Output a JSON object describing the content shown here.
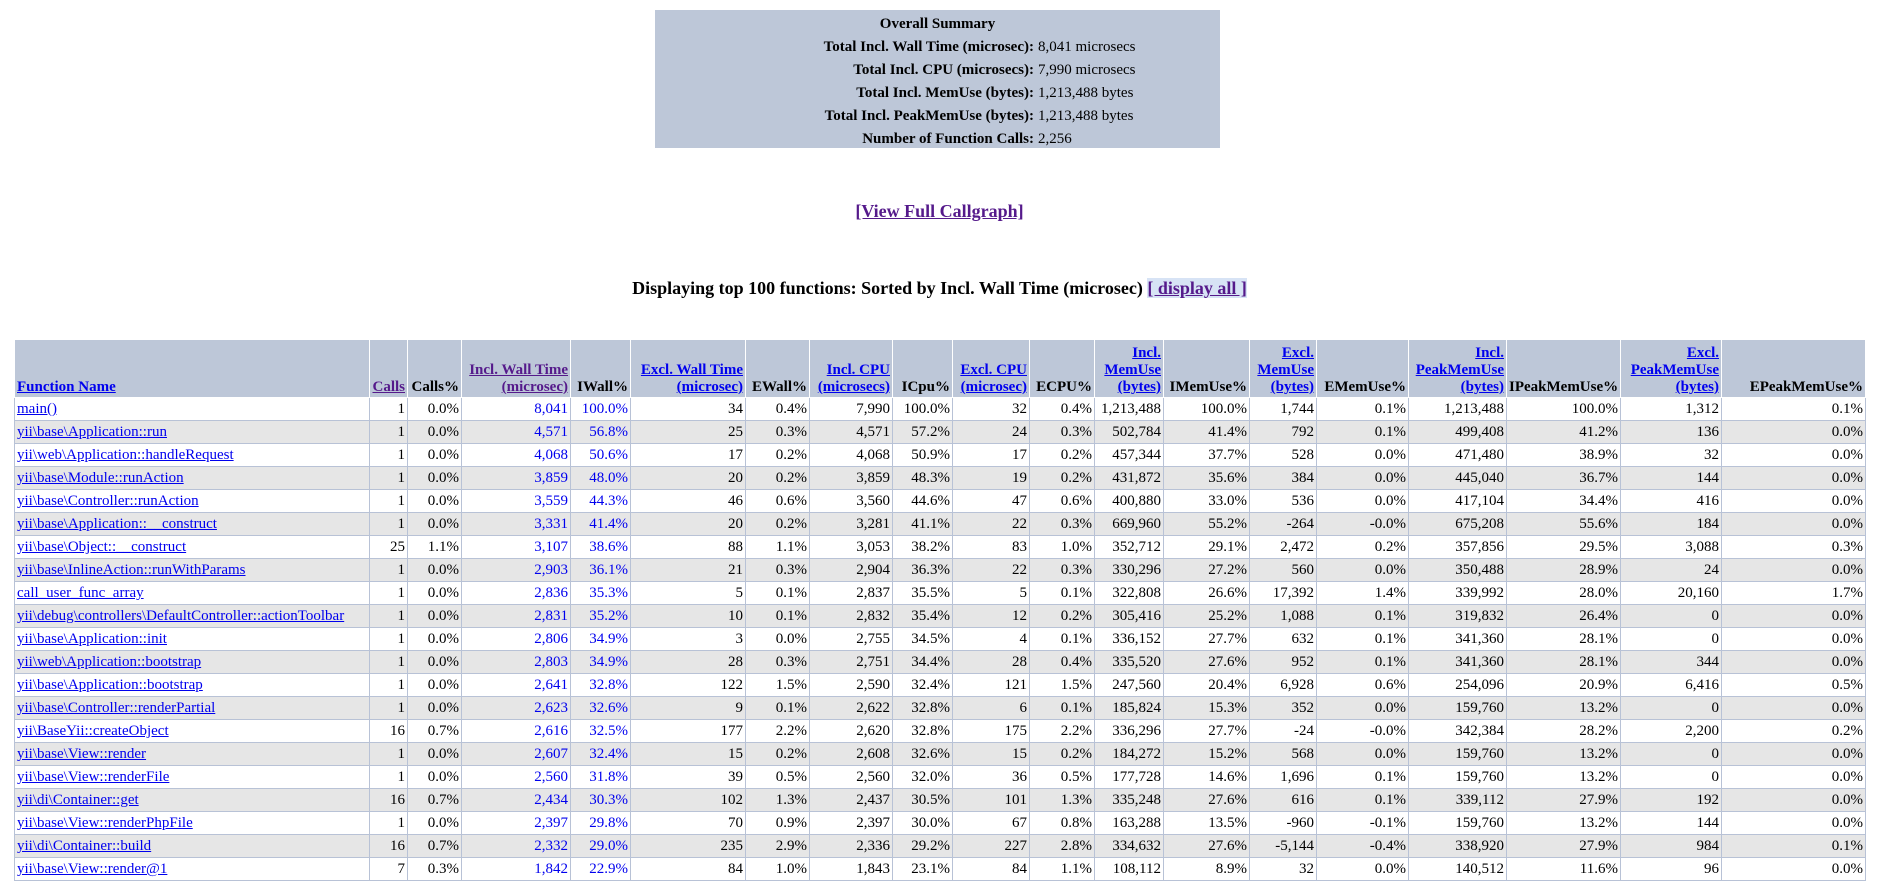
{
  "summary": {
    "title": "Overall Summary",
    "rows": [
      {
        "label": "Total Incl. Wall Time (microsec):",
        "value": "8,041 microsecs"
      },
      {
        "label": "Total Incl. CPU (microsecs):",
        "value": "7,990 microsecs"
      },
      {
        "label": "Total Incl. MemUse (bytes):",
        "value": "1,213,488 bytes"
      },
      {
        "label": "Total Incl. PeakMemUse (bytes):",
        "value": "1,213,488 bytes"
      },
      {
        "label": "Number of Function Calls:",
        "value": "2,256"
      }
    ]
  },
  "callgraph_link": "[View Full Callgraph]",
  "heading": {
    "text": "Displaying top 100 functions: Sorted by Incl. Wall Time (microsec) ",
    "display_all": "[ display all ]"
  },
  "table": {
    "headers": [
      {
        "label": "Function Name",
        "link": true,
        "visited": false,
        "align": "left"
      },
      {
        "label": "Calls",
        "link": true,
        "visited": true
      },
      {
        "label": "Calls%",
        "link": false
      },
      {
        "label": "Incl. Wall Time (microsec)",
        "link": true,
        "visited": true
      },
      {
        "label": "IWall%",
        "link": false
      },
      {
        "label": "Excl. Wall Time (microsec)",
        "link": true,
        "visited": false
      },
      {
        "label": "EWall%",
        "link": false
      },
      {
        "label": "Incl. CPU (microsecs)",
        "link": true,
        "visited": false
      },
      {
        "label": "ICpu%",
        "link": false
      },
      {
        "label": "Excl. CPU (microsec)",
        "link": true,
        "visited": false
      },
      {
        "label": "ECPU%",
        "link": false
      },
      {
        "label": "Incl. MemUse (bytes)",
        "link": true,
        "visited": false
      },
      {
        "label": "IMemUse%",
        "link": false
      },
      {
        "label": "Excl. MemUse (bytes)",
        "link": true,
        "visited": false
      },
      {
        "label": "EMemUse%",
        "link": false
      },
      {
        "label": "Incl. PeakMemUse (bytes)",
        "link": true,
        "visited": false
      },
      {
        "label": "IPeakMemUse%",
        "link": false
      },
      {
        "label": "Excl. PeakMemUse (bytes)",
        "link": true,
        "visited": false
      },
      {
        "label": "EPeakMemUse%",
        "link": false
      }
    ],
    "rows": [
      [
        "main()",
        "1",
        "0.0%",
        "8,041",
        "100.0%",
        "34",
        "0.4%",
        "7,990",
        "100.0%",
        "32",
        "0.4%",
        "1,213,488",
        "100.0%",
        "1,744",
        "0.1%",
        "1,213,488",
        "100.0%",
        "1,312",
        "0.1%"
      ],
      [
        "yii\\base\\Application::run",
        "1",
        "0.0%",
        "4,571",
        "56.8%",
        "25",
        "0.3%",
        "4,571",
        "57.2%",
        "24",
        "0.3%",
        "502,784",
        "41.4%",
        "792",
        "0.1%",
        "499,408",
        "41.2%",
        "136",
        "0.0%"
      ],
      [
        "yii\\web\\Application::handleRequest",
        "1",
        "0.0%",
        "4,068",
        "50.6%",
        "17",
        "0.2%",
        "4,068",
        "50.9%",
        "17",
        "0.2%",
        "457,344",
        "37.7%",
        "528",
        "0.0%",
        "471,480",
        "38.9%",
        "32",
        "0.0%"
      ],
      [
        "yii\\base\\Module::runAction",
        "1",
        "0.0%",
        "3,859",
        "48.0%",
        "20",
        "0.2%",
        "3,859",
        "48.3%",
        "19",
        "0.2%",
        "431,872",
        "35.6%",
        "384",
        "0.0%",
        "445,040",
        "36.7%",
        "144",
        "0.0%"
      ],
      [
        "yii\\base\\Controller::runAction",
        "1",
        "0.0%",
        "3,559",
        "44.3%",
        "46",
        "0.6%",
        "3,560",
        "44.6%",
        "47",
        "0.6%",
        "400,880",
        "33.0%",
        "536",
        "0.0%",
        "417,104",
        "34.4%",
        "416",
        "0.0%"
      ],
      [
        "yii\\base\\Application::__construct",
        "1",
        "0.0%",
        "3,331",
        "41.4%",
        "20",
        "0.2%",
        "3,281",
        "41.1%",
        "22",
        "0.3%",
        "669,960",
        "55.2%",
        "-264",
        "-0.0%",
        "675,208",
        "55.6%",
        "184",
        "0.0%"
      ],
      [
        "yii\\base\\Object::__construct",
        "25",
        "1.1%",
        "3,107",
        "38.6%",
        "88",
        "1.1%",
        "3,053",
        "38.2%",
        "83",
        "1.0%",
        "352,712",
        "29.1%",
        "2,472",
        "0.2%",
        "357,856",
        "29.5%",
        "3,088",
        "0.3%"
      ],
      [
        "yii\\base\\InlineAction::runWithParams",
        "1",
        "0.0%",
        "2,903",
        "36.1%",
        "21",
        "0.3%",
        "2,904",
        "36.3%",
        "22",
        "0.3%",
        "330,296",
        "27.2%",
        "560",
        "0.0%",
        "350,488",
        "28.9%",
        "24",
        "0.0%"
      ],
      [
        "call_user_func_array",
        "1",
        "0.0%",
        "2,836",
        "35.3%",
        "5",
        "0.1%",
        "2,837",
        "35.5%",
        "5",
        "0.1%",
        "322,808",
        "26.6%",
        "17,392",
        "1.4%",
        "339,992",
        "28.0%",
        "20,160",
        "1.7%"
      ],
      [
        "yii\\debug\\controllers\\DefaultController::actionToolbar",
        "1",
        "0.0%",
        "2,831",
        "35.2%",
        "10",
        "0.1%",
        "2,832",
        "35.4%",
        "12",
        "0.2%",
        "305,416",
        "25.2%",
        "1,088",
        "0.1%",
        "319,832",
        "26.4%",
        "0",
        "0.0%"
      ],
      [
        "yii\\base\\Application::init",
        "1",
        "0.0%",
        "2,806",
        "34.9%",
        "3",
        "0.0%",
        "2,755",
        "34.5%",
        "4",
        "0.1%",
        "336,152",
        "27.7%",
        "632",
        "0.1%",
        "341,360",
        "28.1%",
        "0",
        "0.0%"
      ],
      [
        "yii\\web\\Application::bootstrap",
        "1",
        "0.0%",
        "2,803",
        "34.9%",
        "28",
        "0.3%",
        "2,751",
        "34.4%",
        "28",
        "0.4%",
        "335,520",
        "27.6%",
        "952",
        "0.1%",
        "341,360",
        "28.1%",
        "344",
        "0.0%"
      ],
      [
        "yii\\base\\Application::bootstrap",
        "1",
        "0.0%",
        "2,641",
        "32.8%",
        "122",
        "1.5%",
        "2,590",
        "32.4%",
        "121",
        "1.5%",
        "247,560",
        "20.4%",
        "6,928",
        "0.6%",
        "254,096",
        "20.9%",
        "6,416",
        "0.5%"
      ],
      [
        "yii\\base\\Controller::renderPartial",
        "1",
        "0.0%",
        "2,623",
        "32.6%",
        "9",
        "0.1%",
        "2,622",
        "32.8%",
        "6",
        "0.1%",
        "185,824",
        "15.3%",
        "352",
        "0.0%",
        "159,760",
        "13.2%",
        "0",
        "0.0%"
      ],
      [
        "yii\\BaseYii::createObject",
        "16",
        "0.7%",
        "2,616",
        "32.5%",
        "177",
        "2.2%",
        "2,620",
        "32.8%",
        "175",
        "2.2%",
        "336,296",
        "27.7%",
        "-24",
        "-0.0%",
        "342,384",
        "28.2%",
        "2,200",
        "0.2%"
      ],
      [
        "yii\\base\\View::render",
        "1",
        "0.0%",
        "2,607",
        "32.4%",
        "15",
        "0.2%",
        "2,608",
        "32.6%",
        "15",
        "0.2%",
        "184,272",
        "15.2%",
        "568",
        "0.0%",
        "159,760",
        "13.2%",
        "0",
        "0.0%"
      ],
      [
        "yii\\base\\View::renderFile",
        "1",
        "0.0%",
        "2,560",
        "31.8%",
        "39",
        "0.5%",
        "2,560",
        "32.0%",
        "36",
        "0.5%",
        "177,728",
        "14.6%",
        "1,696",
        "0.1%",
        "159,760",
        "13.2%",
        "0",
        "0.0%"
      ],
      [
        "yii\\di\\Container::get",
        "16",
        "0.7%",
        "2,434",
        "30.3%",
        "102",
        "1.3%",
        "2,437",
        "30.5%",
        "101",
        "1.3%",
        "335,248",
        "27.6%",
        "616",
        "0.1%",
        "339,112",
        "27.9%",
        "192",
        "0.0%"
      ],
      [
        "yii\\base\\View::renderPhpFile",
        "1",
        "0.0%",
        "2,397",
        "29.8%",
        "70",
        "0.9%",
        "2,397",
        "30.0%",
        "67",
        "0.8%",
        "163,288",
        "13.5%",
        "-960",
        "-0.1%",
        "159,760",
        "13.2%",
        "144",
        "0.0%"
      ],
      [
        "yii\\di\\Container::build",
        "16",
        "0.7%",
        "2,332",
        "29.0%",
        "235",
        "2.9%",
        "2,336",
        "29.2%",
        "227",
        "2.8%",
        "334,632",
        "27.6%",
        "-5,144",
        "-0.4%",
        "338,920",
        "27.9%",
        "984",
        "0.1%"
      ],
      [
        "yii\\base\\View::render@1",
        "7",
        "0.3%",
        "1,842",
        "22.9%",
        "84",
        "1.0%",
        "1,843",
        "23.1%",
        "84",
        "1.1%",
        "108,112",
        "8.9%",
        "32",
        "0.0%",
        "140,512",
        "11.6%",
        "96",
        "0.0%"
      ]
    ]
  }
}
